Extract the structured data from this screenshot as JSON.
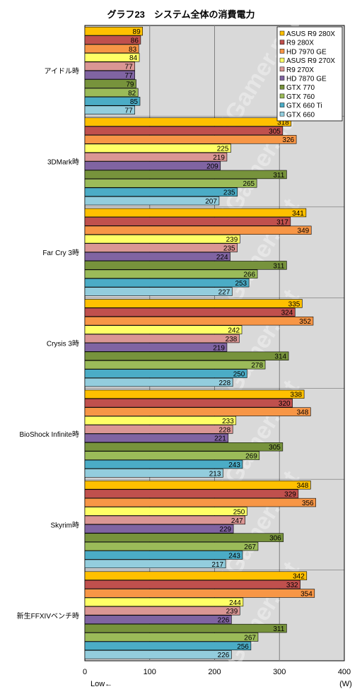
{
  "chart_data": {
    "type": "bar",
    "orientation": "horizontal",
    "title": "グラフ23　システム全体の消費電力",
    "unit_label": "(W)",
    "low_label": "Low←",
    "xlim": [
      0,
      400
    ],
    "xticks": [
      0,
      100,
      200,
      300,
      400
    ],
    "grid": true,
    "legend_position": "top-right",
    "categories": [
      "アイドル時",
      "3DMark時",
      "Far Cry 3時",
      "Crysis 3時",
      "BioShock Infinite時",
      "Skyrim時",
      "新生FFXIVベンチ時"
    ],
    "series": [
      {
        "name": "ASUS R9 280X",
        "color": "#FFC000",
        "values": [
          89,
          318,
          341,
          335,
          338,
          348,
          342
        ]
      },
      {
        "name": "R9 280X",
        "color": "#C0504D",
        "values": [
          86,
          305,
          317,
          324,
          320,
          329,
          332
        ]
      },
      {
        "name": "HD 7970 GE",
        "color": "#F79646",
        "values": [
          83,
          326,
          349,
          352,
          348,
          356,
          354
        ]
      },
      {
        "name": "ASUS R9 270X",
        "color": "#FFFF66",
        "values": [
          84,
          225,
          239,
          242,
          233,
          250,
          244
        ]
      },
      {
        "name": "R9 270X",
        "color": "#DA9694",
        "values": [
          77,
          219,
          235,
          238,
          228,
          247,
          239
        ]
      },
      {
        "name": "HD 7870 GE",
        "color": "#8064A2",
        "values": [
          77,
          209,
          224,
          219,
          221,
          229,
          226
        ]
      },
      {
        "name": "GTX 770",
        "color": "#77933C",
        "values": [
          79,
          311,
          311,
          314,
          305,
          306,
          311
        ]
      },
      {
        "name": "GTX 760",
        "color": "#9BBB59",
        "values": [
          82,
          265,
          266,
          278,
          269,
          267,
          267
        ]
      },
      {
        "name": "GTX 660 Ti",
        "color": "#4BACC6",
        "values": [
          85,
          235,
          253,
          250,
          243,
          243,
          256
        ]
      },
      {
        "name": "GTX 660",
        "color": "#93CDDD",
        "values": [
          77,
          207,
          227,
          228,
          213,
          217,
          226
        ]
      }
    ]
  },
  "watermark": "4Gamer.net"
}
